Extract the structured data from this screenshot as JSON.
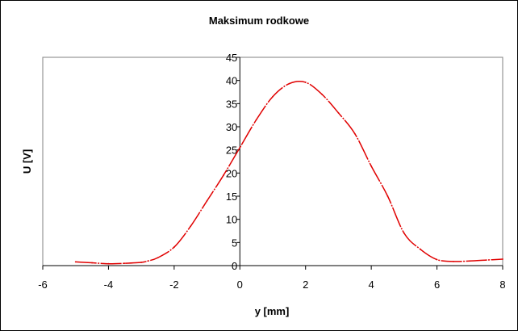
{
  "chart_data": {
    "type": "line",
    "title": "Maksimum   rodkowe",
    "xlabel": "y [mm]",
    "ylabel": "U [V]",
    "xlim": [
      -6,
      8
    ],
    "ylim": [
      0,
      45
    ],
    "x_ticks": [
      -6,
      -4,
      -2,
      0,
      2,
      4,
      6,
      8
    ],
    "y_ticks": [
      0,
      5,
      10,
      15,
      20,
      25,
      30,
      35,
      40,
      45
    ],
    "grid": false,
    "legend": "none",
    "series": [
      {
        "name": "U",
        "color": "#e00000",
        "x": [
          -5.0,
          -4.5,
          -4.0,
          -3.5,
          -3.0,
          -2.8,
          -2.5,
          -2.0,
          -1.5,
          -1.0,
          -0.5,
          0.0,
          0.5,
          1.0,
          1.5,
          2.0,
          2.5,
          3.0,
          3.5,
          4.0,
          4.5,
          5.0,
          5.5,
          6.0,
          6.5,
          7.0,
          7.5,
          8.0
        ],
        "y": [
          0.8,
          0.6,
          0.4,
          0.5,
          0.7,
          1.0,
          1.7,
          4.0,
          8.5,
          14.0,
          19.5,
          25.5,
          31.5,
          36.5,
          39.3,
          39.6,
          37.0,
          33.0,
          28.5,
          21.5,
          15.0,
          7.0,
          3.5,
          1.3,
          0.9,
          1.0,
          1.2,
          1.4
        ]
      }
    ]
  }
}
